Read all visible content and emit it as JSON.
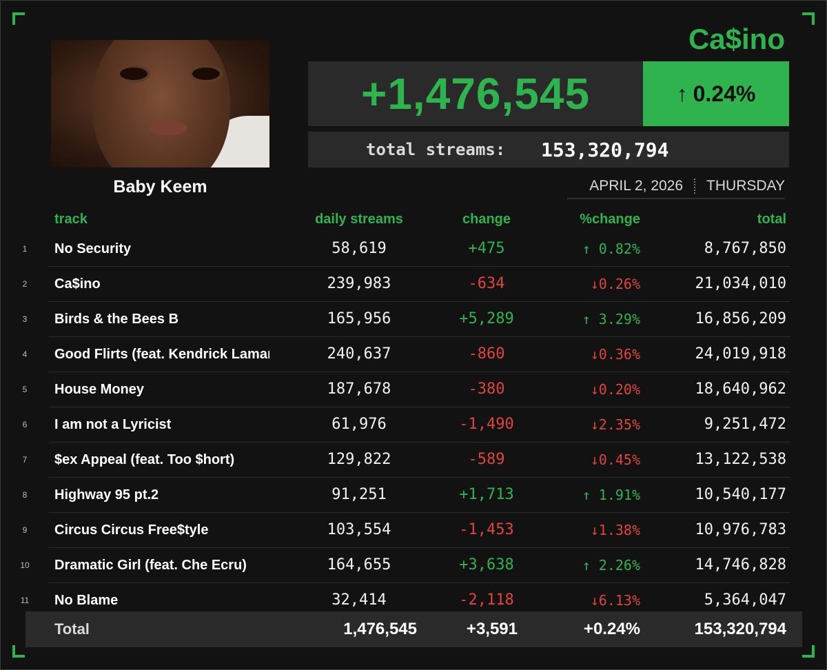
{
  "artist": "Baby Keem",
  "album": "Ca$ino",
  "daily_total": "+1,476,545",
  "daily_pct": {
    "arrow": "↑",
    "value": "0.24%"
  },
  "total_streams": {
    "label": "total streams:",
    "value": "153,320,794"
  },
  "date": {
    "date": "APRIL 2, 2026",
    "weekday": "THURSDAY"
  },
  "colors": {
    "accent": "#2fb34e",
    "negative": "#e0453b",
    "panel": "#2a2a2a",
    "background": "#121212"
  },
  "columns": {
    "track": "track",
    "daily": "daily streams",
    "change": "change",
    "pct": "%change",
    "total": "total"
  },
  "tracks": [
    {
      "num": "1",
      "name": "No Security",
      "daily": "58,619",
      "change": "+475",
      "pct": "↑ 0.82%",
      "total": "8,767,850",
      "dir": "pos"
    },
    {
      "num": "2",
      "name": "Ca$ino",
      "daily": "239,983",
      "change": "-634",
      "pct": "↓0.26%",
      "total": "21,034,010",
      "dir": "neg"
    },
    {
      "num": "3",
      "name": "Birds & the Bees B",
      "daily": "165,956",
      "change": "+5,289",
      "pct": "↑ 3.29%",
      "total": "16,856,209",
      "dir": "pos"
    },
    {
      "num": "4",
      "name": "Good Flirts (feat. Kendrick Lamar)",
      "daily": "240,637",
      "change": "-860",
      "pct": "↓0.36%",
      "total": "24,019,918",
      "dir": "neg"
    },
    {
      "num": "5",
      "name": "House Money",
      "daily": "187,678",
      "change": "-380",
      "pct": "↓0.20%",
      "total": "18,640,962",
      "dir": "neg"
    },
    {
      "num": "6",
      "name": "I am not a Lyricist",
      "daily": "61,976",
      "change": "-1,490",
      "pct": "↓2.35%",
      "total": "9,251,472",
      "dir": "neg"
    },
    {
      "num": "7",
      "name": "$ex Appeal (feat. Too $hort)",
      "daily": "129,822",
      "change": "-589",
      "pct": "↓0.45%",
      "total": "13,122,538",
      "dir": "neg"
    },
    {
      "num": "8",
      "name": "Highway 95 pt.2",
      "daily": "91,251",
      "change": "+1,713",
      "pct": "↑ 1.91%",
      "total": "10,540,177",
      "dir": "pos"
    },
    {
      "num": "9",
      "name": "Circus Circus Free$tyle",
      "daily": "103,554",
      "change": "-1,453",
      "pct": "↓1.38%",
      "total": "10,976,783",
      "dir": "neg"
    },
    {
      "num": "10",
      "name": "Dramatic Girl (feat. Che Ecru)",
      "daily": "164,655",
      "change": "+3,638",
      "pct": "↑ 2.26%",
      "total": "14,746,828",
      "dir": "pos"
    },
    {
      "num": "11",
      "name": "No Blame",
      "daily": "32,414",
      "change": "-2,118",
      "pct": "↓6.13%",
      "total": "5,364,047",
      "dir": "neg"
    }
  ],
  "totals": {
    "label": "Total",
    "daily": "1,476,545",
    "change": "+3,591",
    "pct": "+0.24%",
    "total": "153,320,794"
  }
}
